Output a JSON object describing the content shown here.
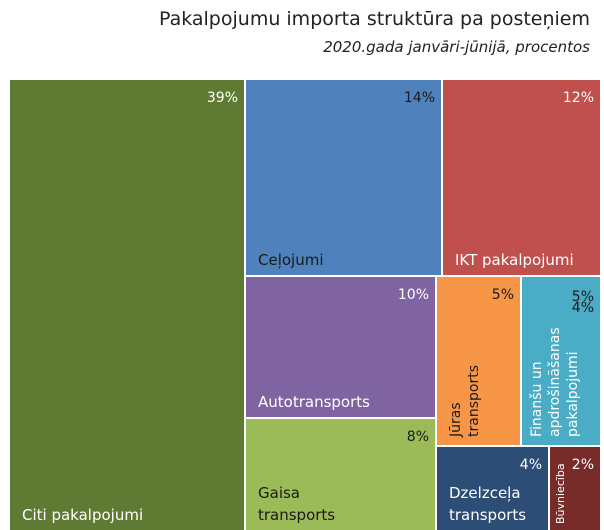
{
  "chart_data": {
    "type": "treemap",
    "title": "Pakalpojumu importa struktūra pa posteņiem",
    "subtitle": "2020.gada janvāri-jūnijā, procentos",
    "categories": [
      "Citi pakalpojumi",
      "Ceļojumi",
      "IKT pakalpojumi",
      "Autotransports",
      "Gaisa transports",
      "Jūras transports",
      "Finanšu un apdrošināšanas pakalpojumi",
      null,
      "Dzelzceļa transports",
      "Būvniecība"
    ],
    "values": [
      39,
      14,
      12,
      10,
      8,
      5,
      5,
      4,
      4,
      2
    ],
    "value_labels": [
      "39%",
      "14%",
      "12%",
      "10%",
      "8%",
      "5%",
      "5%",
      "4%",
      "4%",
      "2%"
    ],
    "colors": [
      "#5f7a32",
      "#4f81bd",
      "#c0504d",
      "#8064a2",
      "#9bbb59",
      "#f79646",
      "#4bacc6",
      null,
      "#2c4d75",
      "#772c2a"
    ]
  }
}
